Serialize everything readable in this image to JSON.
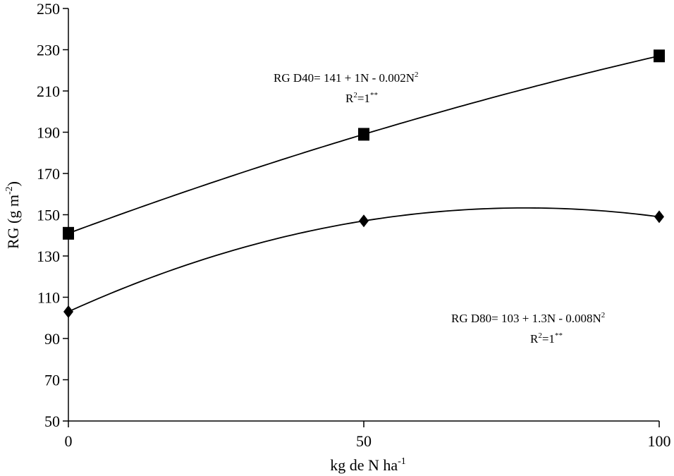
{
  "chart_data": {
    "type": "line",
    "xlabel": {
      "main": "kg de N ha",
      "sup": "-1"
    },
    "ylabel": {
      "main": "RG (g m",
      "sup": "-2",
      "close": ")"
    },
    "xlim": [
      0,
      100
    ],
    "ylim": [
      50,
      250
    ],
    "x_ticks": [
      0,
      50,
      100
    ],
    "x_tick_labels": [
      "0",
      "50",
      "100"
    ],
    "y_ticks": [
      50,
      70,
      90,
      110,
      130,
      150,
      170,
      190,
      210,
      230,
      250
    ],
    "y_tick_labels": [
      "50",
      "70",
      "90",
      "110",
      "130",
      "150",
      "170",
      "190",
      "210",
      "230",
      "250"
    ],
    "grid": false,
    "series": [
      {
        "marker": "square",
        "x": [
          0,
          50,
          100
        ],
        "y": [
          141,
          189,
          227
        ],
        "curve": {
          "a": 141,
          "b": 1,
          "c": -0.002
        },
        "equation": {
          "line1": "RG D40= 141 + 1N - 0.002N",
          "line1_sup": "2",
          "line2": "R",
          "line2_sup": "2",
          "line2_rest": "=1",
          "line2_sig": "**"
        }
      },
      {
        "marker": "diamond",
        "x": [
          0,
          50,
          100
        ],
        "y": [
          103,
          147,
          149
        ],
        "curve": {
          "a": 103,
          "b": 1.3,
          "c": -0.008
        },
        "equation": {
          "line1": "RG D80= 103 + 1.3N - 0.008N",
          "line1_sup": "2",
          "line2": "R",
          "line2_sup": "2",
          "line2_rest": "=1",
          "line2_sig": "**"
        }
      }
    ]
  }
}
